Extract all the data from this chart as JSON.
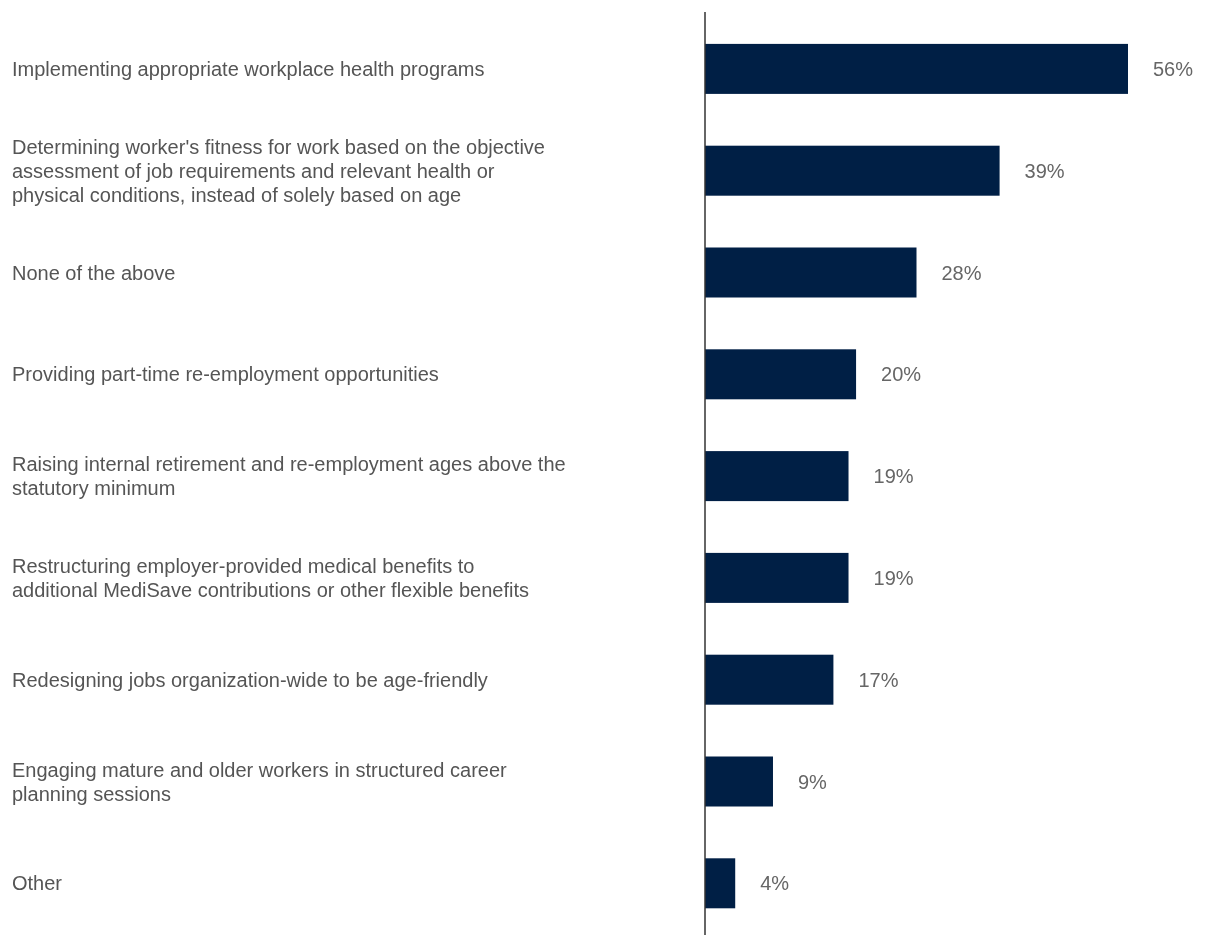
{
  "chart_data": {
    "type": "bar",
    "orientation": "horizontal",
    "color": "#001f45",
    "categories": [
      "Implementing appropriate workplace health programs",
      "Determining worker's fitness for work based on the objective assessment of job requirements and relevant health or physical conditions, instead of solely based on age",
      "None of the above",
      "Providing part-time re-employment opportunities",
      "Raising internal retirement and re-employment ages above the statutory minimum",
      "Restructuring employer-provided medical benefits to additional MediSave contributions or other flexible benefits",
      "Redesigning jobs organization-wide to be age-friendly",
      "Engaging mature and older workers in structured career planning sessions",
      "Other"
    ],
    "values": [
      56,
      39,
      28,
      20,
      19,
      19,
      17,
      9,
      4
    ],
    "value_labels": [
      "56%",
      "39%",
      "28%",
      "20%",
      "19%",
      "19%",
      "17%",
      "9%",
      "4%"
    ]
  }
}
